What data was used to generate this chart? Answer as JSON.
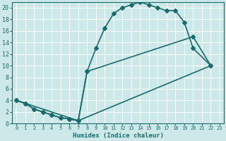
{
  "xlabel": "Humidex (Indice chaleur)",
  "bg_color": "#cce8e8",
  "line_color": "#1a6b6b",
  "grid_color": "#ffffff",
  "xlim": [
    -0.5,
    23.5
  ],
  "ylim": [
    0,
    21
  ],
  "xticks": [
    0,
    1,
    2,
    3,
    4,
    5,
    6,
    7,
    8,
    9,
    10,
    11,
    12,
    13,
    14,
    15,
    16,
    17,
    18,
    19,
    20,
    21,
    22,
    23
  ],
  "yticks": [
    0,
    2,
    4,
    6,
    8,
    10,
    12,
    14,
    16,
    18,
    20
  ],
  "line1_x": [
    0,
    1,
    2,
    3,
    4,
    5,
    6,
    7,
    8,
    9,
    10,
    11,
    12,
    13,
    14,
    15,
    16,
    17,
    18,
    19,
    20,
    22
  ],
  "line1_y": [
    4.0,
    3.5,
    2.5,
    2.0,
    1.5,
    1.0,
    0.8,
    0.5,
    9.0,
    13.0,
    16.5,
    19.0,
    20.0,
    20.5,
    21.0,
    20.5,
    20.0,
    19.5,
    19.5,
    17.5,
    13.0,
    10.0
  ],
  "line2_x": [
    0,
    1,
    2,
    3,
    4,
    5,
    6,
    7,
    8,
    20,
    22
  ],
  "line2_y": [
    4.0,
    3.5,
    2.5,
    2.0,
    1.5,
    1.0,
    0.8,
    0.5,
    9.0,
    15.0,
    10.0
  ],
  "line3_x": [
    0,
    7,
    22
  ],
  "line3_y": [
    4.0,
    0.5,
    10.0
  ],
  "marker_size": 3,
  "linewidth": 1.2
}
